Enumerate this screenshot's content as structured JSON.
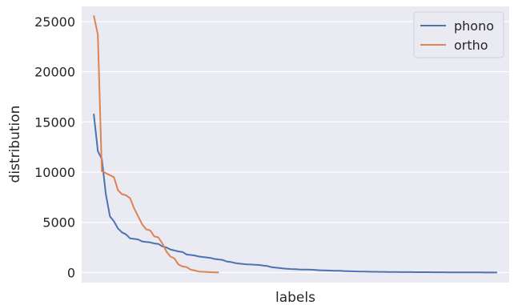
{
  "chart_data": {
    "type": "line",
    "xlabel": "labels",
    "ylabel": "distribution",
    "ylim": [
      -1000,
      26500
    ],
    "yticks": [
      0,
      5000,
      10000,
      15000,
      20000,
      25000
    ],
    "xlim": [
      -3,
      103
    ],
    "x_tick_labels": "none",
    "grid": true,
    "background": "#EAEAF2",
    "legend_position": "top-right",
    "series": [
      {
        "name": "phono",
        "color": "#4C72B0",
        "x": [
          0,
          1,
          2,
          3,
          4,
          5,
          6,
          7,
          8,
          9,
          10,
          11,
          12,
          13,
          14,
          15,
          16,
          17,
          18,
          19,
          20,
          21,
          22,
          23,
          24,
          25,
          26,
          27,
          28,
          29,
          30,
          31,
          32,
          33,
          34,
          35,
          36,
          37,
          38,
          39,
          40,
          41,
          42,
          43,
          44,
          45,
          46,
          47,
          48,
          49,
          50,
          51,
          52,
          53,
          54,
          55,
          56,
          57,
          58,
          59,
          60,
          61,
          62,
          63,
          64,
          65,
          66,
          67,
          68,
          69,
          70,
          71,
          72,
          73,
          74,
          75,
          76,
          77,
          78,
          79,
          80,
          81,
          82,
          83,
          84,
          85,
          86,
          87,
          88,
          89,
          90,
          91,
          92,
          93,
          94,
          95,
          96,
          97,
          98,
          99,
          100
        ],
        "y": [
          15800,
          12100,
          11300,
          7800,
          5600,
          5100,
          4400,
          4000,
          3800,
          3400,
          3350,
          3300,
          3100,
          3050,
          3000,
          2900,
          2850,
          2600,
          2500,
          2300,
          2200,
          2100,
          2050,
          1800,
          1750,
          1700,
          1600,
          1550,
          1500,
          1450,
          1350,
          1300,
          1250,
          1100,
          1050,
          950,
          900,
          850,
          820,
          800,
          780,
          750,
          700,
          650,
          550,
          500,
          450,
          400,
          380,
          350,
          330,
          310,
          300,
          290,
          280,
          250,
          230,
          210,
          200,
          190,
          180,
          170,
          150,
          130,
          120,
          110,
          100,
          90,
          85,
          80,
          75,
          70,
          65,
          60,
          55,
          50,
          48,
          46,
          44,
          42,
          40,
          38,
          36,
          34,
          32,
          30,
          28,
          26,
          24,
          22,
          20,
          18,
          16,
          14,
          12,
          10,
          9,
          8,
          7,
          6,
          5
        ]
      },
      {
        "name": "ortho",
        "color": "#DD8452",
        "x": [
          0,
          1,
          2,
          3,
          4,
          5,
          6,
          7,
          8,
          9,
          10,
          11,
          12,
          13,
          14,
          15,
          16,
          17,
          18,
          19,
          20,
          21,
          22,
          23,
          24,
          25,
          26,
          27,
          28,
          29,
          30,
          31
        ],
        "y": [
          25600,
          23700,
          10100,
          9900,
          9700,
          9500,
          8200,
          7800,
          7700,
          7400,
          6400,
          5600,
          4800,
          4300,
          4200,
          3600,
          3500,
          2900,
          2100,
          1600,
          1400,
          800,
          600,
          550,
          300,
          200,
          100,
          80,
          60,
          40,
          20,
          10
        ]
      }
    ]
  }
}
